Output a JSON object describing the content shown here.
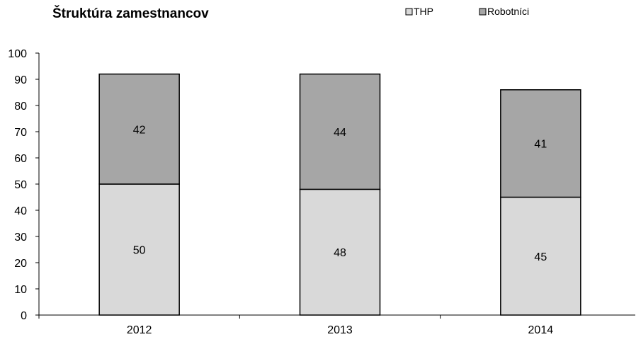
{
  "chart_data": {
    "type": "bar",
    "stacked": true,
    "title": "Štruktúra zamestnancov",
    "categories": [
      "2012",
      "2013",
      "2014"
    ],
    "series": [
      {
        "name": "THP",
        "values": [
          50,
          48,
          45
        ],
        "color": "#d9d9d9"
      },
      {
        "name": "Robotníci",
        "values": [
          42,
          44,
          41
        ],
        "color": "#a6a6a6"
      }
    ],
    "ylim": [
      0,
      100
    ],
    "yticks": [
      0,
      10,
      20,
      30,
      40,
      50,
      60,
      70,
      80,
      90,
      100
    ],
    "grid": false,
    "legend": "top-right",
    "xlabel": "",
    "ylabel": ""
  }
}
